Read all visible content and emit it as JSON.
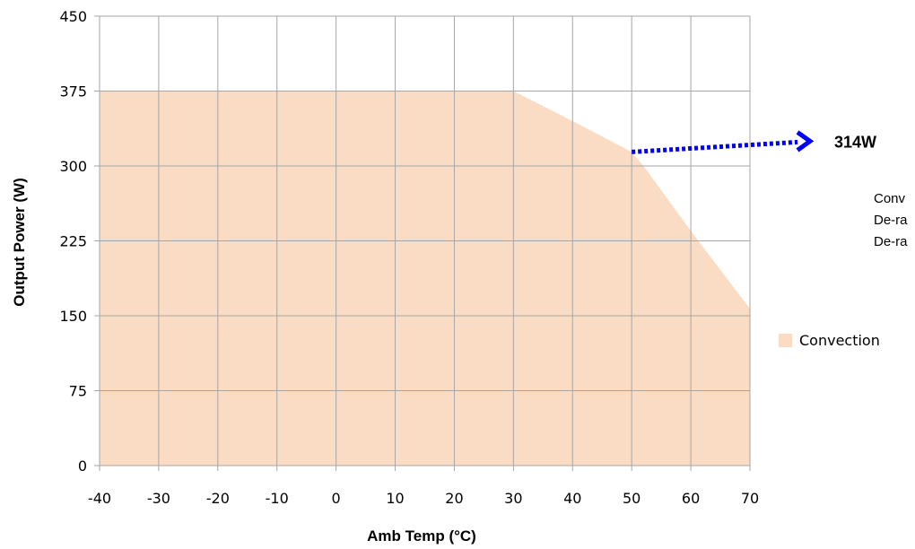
{
  "chart_data": {
    "type": "area",
    "x": [
      -40,
      -30,
      -20,
      -10,
      0,
      10,
      20,
      30,
      40,
      50,
      52,
      60,
      70
    ],
    "series": [
      {
        "name": "Convection",
        "values": [
          375,
          375,
          375,
          375,
          375,
          375,
          375,
          375,
          345,
          314,
          300,
          235,
          157
        ]
      }
    ],
    "xlabel": "Amb Temp (°C)",
    "ylabel": "Output Power (W)",
    "xlim": [
      -40,
      70
    ],
    "ylim": [
      0,
      450
    ],
    "x_ticks": [
      -40,
      -30,
      -20,
      -10,
      0,
      10,
      20,
      30,
      40,
      50,
      60,
      70
    ],
    "y_ticks": [
      0,
      75,
      150,
      225,
      300,
      375,
      450
    ],
    "grid": true,
    "legend_position": "right",
    "annotation": {
      "x": 50,
      "y": 314,
      "label": "314W"
    },
    "colors": {
      "fill": "#fadcc4",
      "grid": "#a6a6a6",
      "arrow": "#0000ff"
    }
  },
  "notes": [
    "Conv",
    "De-ra",
    "De-ra"
  ]
}
